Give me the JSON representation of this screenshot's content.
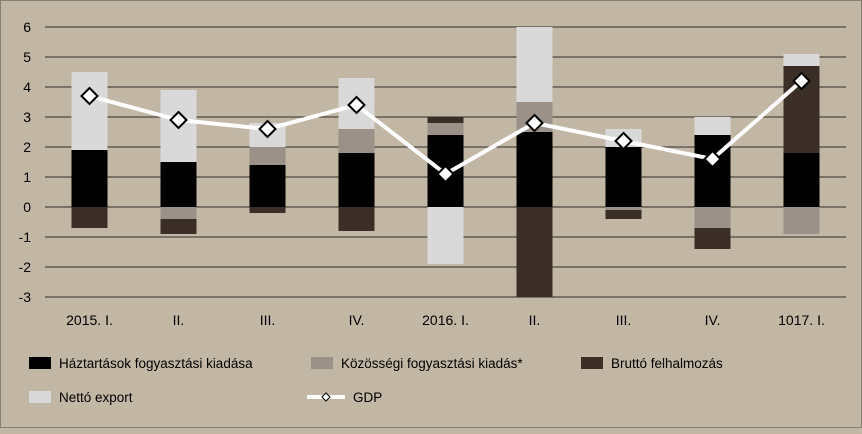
{
  "chart_data": {
    "type": "bar",
    "stacked": true,
    "categories": [
      "2015. I.",
      "II.",
      "III.",
      "IV.",
      "2016. I.",
      "II.",
      "III.",
      "IV.",
      "1017. I."
    ],
    "ylim": [
      -3,
      6
    ],
    "yticks": [
      "-3",
      "-2",
      "-1",
      "0",
      "1",
      "2",
      "3",
      "4",
      "5",
      "6"
    ],
    "grid": true,
    "legend_position": "bottom",
    "series": [
      {
        "name": "Háztartások fogyasztási kiadása",
        "color": "#000000",
        "values": [
          1.9,
          1.5,
          1.4,
          1.8,
          2.4,
          2.5,
          2.0,
          2.4,
          1.8
        ]
      },
      {
        "name": "Közösségi fogyasztási kiadás*",
        "color": "#9b9189",
        "values": [
          0.0,
          -0.4,
          0.6,
          0.8,
          0.4,
          1.0,
          -0.1,
          -0.7,
          -0.9
        ]
      },
      {
        "name": "Bruttó felhalmozás",
        "color": "#3b2e26",
        "values": [
          -0.7,
          -0.5,
          -0.2,
          -0.8,
          0.2,
          -3.0,
          -0.3,
          -0.7,
          2.9
        ]
      },
      {
        "name": "Nettó export",
        "color": "#d9d9d9",
        "values": [
          2.6,
          2.4,
          0.8,
          1.7,
          -1.9,
          2.5,
          0.6,
          0.6,
          0.4
        ]
      }
    ],
    "line": {
      "name": "GDP",
      "color": "#ffffff",
      "values": [
        3.7,
        2.9,
        2.6,
        3.4,
        1.1,
        2.8,
        2.2,
        1.6,
        4.2
      ]
    }
  }
}
